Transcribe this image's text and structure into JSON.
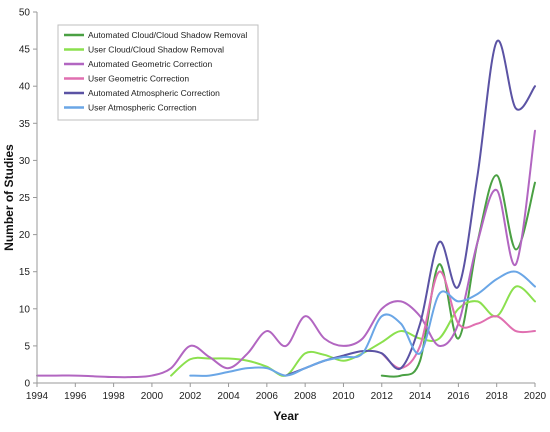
{
  "chart_data": {
    "type": "line",
    "xlabel": "Year",
    "ylabel": "Number of Studies",
    "xlim": [
      1994,
      2020
    ],
    "ylim": [
      0,
      50
    ],
    "xticks": [
      "1994",
      "1996",
      "1998",
      "2000",
      "2002",
      "2004",
      "2006",
      "2008",
      "2010",
      "2012",
      "2014",
      "2016",
      "2018",
      "2020"
    ],
    "yticks": [
      "0",
      "5",
      "10",
      "15",
      "20",
      "25",
      "30",
      "35",
      "40",
      "45",
      "50"
    ],
    "grid": false,
    "legend_position": "top-left",
    "series": [
      {
        "name": "Automated Cloud/Cloud Shadow Removal",
        "color": "#4aa043",
        "x": [
          2012,
          2013,
          2014,
          2015,
          2016,
          2017,
          2018,
          2019,
          2020
        ],
        "y": [
          1,
          1,
          3,
          16,
          6,
          19,
          28,
          18,
          27
        ]
      },
      {
        "name": "User Cloud/Cloud Shadow Removal",
        "color": "#8be04e",
        "x": [
          2001,
          2002,
          2003,
          2004,
          2005,
          2006,
          2007,
          2008,
          2009,
          2010,
          2011,
          2012,
          2013,
          2014,
          2015,
          2016,
          2017,
          2018,
          2019,
          2020
        ],
        "y": [
          1,
          3.2,
          3.3,
          3.3,
          3,
          2.2,
          1,
          4,
          3.8,
          3,
          4,
          5.5,
          7,
          6,
          6,
          10,
          11,
          9,
          13,
          11
        ]
      },
      {
        "name": "Automated Geometric Correction",
        "color": "#b266c1",
        "x": [
          1994,
          1995,
          1996,
          1997,
          1998,
          1999,
          2000,
          2001,
          2002,
          2003,
          2004,
          2005,
          2006,
          2007,
          2008,
          2009,
          2010,
          2011,
          2012,
          2013,
          2014,
          2015,
          2016,
          2017,
          2018,
          2019,
          2020
        ],
        "y": [
          1,
          1,
          1,
          0.9,
          0.8,
          0.8,
          1,
          2,
          5,
          3.5,
          2,
          4,
          7,
          5,
          9,
          6,
          5,
          6,
          10,
          11,
          9,
          5,
          8,
          19,
          26,
          16,
          34
        ]
      },
      {
        "name": "User Geometric Correction",
        "color": "#e06fb0",
        "x": [
          2012,
          2013,
          2014,
          2015,
          2016,
          2017,
          2018,
          2019,
          2020
        ],
        "y": [
          4,
          2,
          5,
          15,
          8,
          8,
          9,
          7,
          7
        ]
      },
      {
        "name": "Automated Atmospheric Correction",
        "color": "#5b53a4",
        "x": [
          2007,
          2008,
          2009,
          2010,
          2011,
          2012,
          2013,
          2014,
          2015,
          2016,
          2017,
          2018,
          2019,
          2020
        ],
        "y": [
          1,
          2,
          3,
          3.7,
          4.3,
          4,
          2,
          8,
          19,
          13,
          28,
          46,
          37,
          40
        ]
      },
      {
        "name": "User Atmospheric Correction",
        "color": "#6aa6e6",
        "x": [
          2002,
          2003,
          2004,
          2005,
          2006,
          2007,
          2008,
          2009,
          2010,
          2011,
          2012,
          2013,
          2014,
          2015,
          2016,
          2017,
          2018,
          2019,
          2020
        ],
        "y": [
          1,
          1,
          1.5,
          2,
          2,
          1,
          2,
          3,
          3.5,
          4,
          9,
          8,
          4,
          12,
          11,
          12,
          14,
          15,
          13
        ]
      }
    ]
  }
}
